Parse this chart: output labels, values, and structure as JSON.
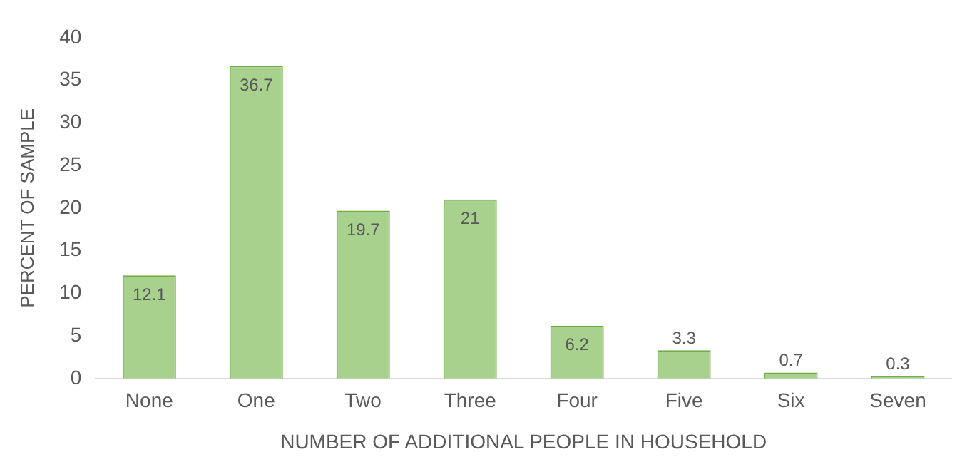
{
  "chart_data": {
    "type": "bar",
    "xlabel": "NUMBER OF ADDITIONAL PEOPLE IN HOUSEHOLD",
    "ylabel": "PERCENT OF SAMPLE",
    "categories": [
      "None",
      "One",
      "Two",
      "Three",
      "Four",
      "Five",
      "Six",
      "Seven"
    ],
    "values": [
      12.1,
      36.7,
      19.7,
      21,
      6.2,
      3.3,
      0.7,
      0.3
    ],
    "color": "#a9d18e",
    "data_labels": true,
    "ylim": [
      0,
      40
    ],
    "yticks": [
      0,
      5,
      10,
      15,
      20,
      25,
      30,
      35,
      40
    ],
    "grid": false,
    "legend": false
  }
}
